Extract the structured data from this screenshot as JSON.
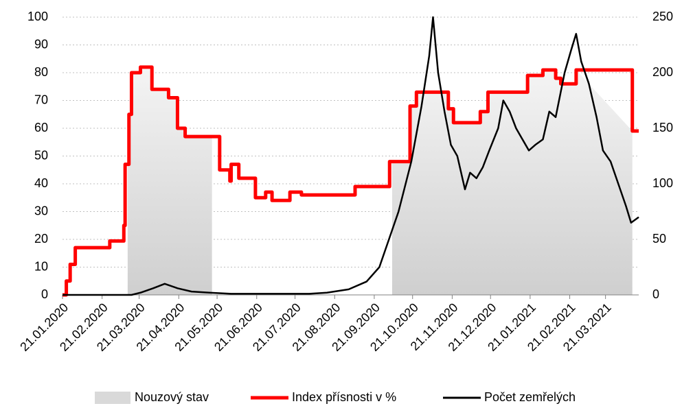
{
  "chart_data": {
    "type": "line",
    "xlim": [
      "21.01.2020",
      "16.04.2021"
    ],
    "xticks": [
      "21.01.2020",
      "21.02.2020",
      "21.03.2020",
      "21.04.2020",
      "21.05.2020",
      "21.06.2020",
      "21.07.2020",
      "21.08.2020",
      "21.09.2020",
      "21.10.2020",
      "21.11.2020",
      "21.12.2020",
      "21.01.2021",
      "21.02.2021",
      "21.03.2021"
    ],
    "ylim": [
      0,
      100
    ],
    "yticks": [
      0,
      10,
      20,
      30,
      40,
      50,
      60,
      70,
      80,
      90,
      100
    ],
    "y2lim": [
      0,
      250
    ],
    "y2ticks": [
      0,
      50,
      100,
      150,
      200,
      250
    ],
    "grid": true,
    "legend": "bottom",
    "shaded": {
      "name": "Nouzový stav",
      "color": "#d9d9d9",
      "periods": [
        [
          "12.03.2020",
          "17.05.2020"
        ],
        [
          "05.10.2020",
          "11.04.2021"
        ]
      ]
    },
    "series": [
      {
        "name": "Index přísnosti v %",
        "color": "#ff0000",
        "step": true,
        "x": [
          "21.01.2020",
          "24.01.2020",
          "27.01.2020",
          "31.01.2020",
          "27.02.2020",
          "09.03.2020",
          "10.03.2020",
          "13.03.2020",
          "15.03.2020",
          "22.03.2020",
          "31.03.2020",
          "13.04.2020",
          "20.04.2020",
          "26.04.2020",
          "23.05.2020",
          "31.05.2020",
          "01.06.2020",
          "07.06.2020",
          "20.06.2020",
          "28.06.2020",
          "03.07.2020",
          "17.07.2020",
          "26.07.2020",
          "06.09.2020",
          "03.10.2020",
          "19.10.2020",
          "24.10.2020",
          "18.11.2020",
          "22.11.2020",
          "13.12.2020",
          "19.12.2020",
          "19.01.2021",
          "31.01.2021",
          "10.02.2021",
          "14.02.2021",
          "26.02.2021",
          "11.04.2021",
          "16.04.2021"
        ],
        "values": [
          0,
          5,
          11,
          17,
          19.4,
          25,
          47,
          65,
          80,
          82,
          74,
          71,
          60,
          57,
          45,
          41,
          47,
          42,
          35,
          37,
          34,
          37,
          36,
          39,
          48,
          68,
          73,
          67,
          62,
          66,
          73,
          79,
          81,
          78,
          76,
          81,
          59,
          59
        ]
      },
      {
        "name": "Počet zemřelých",
        "color": "#000000",
        "axis": "y2",
        "x": [
          "21.01.2020",
          "01.03.2020",
          "15.03.2020",
          "22.03.2020",
          "01.04.2020",
          "10.04.2020",
          "20.04.2020",
          "01.05.2020",
          "15.05.2020",
          "01.06.2020",
          "01.07.2020",
          "01.08.2020",
          "15.08.2020",
          "01.09.2020",
          "15.09.2020",
          "25.09.2020",
          "01.10.2020",
          "10.10.2020",
          "20.10.2020",
          "28.10.2020",
          "03.11.2020",
          "06.11.2020",
          "10.11.2020",
          "15.11.2020",
          "20.11.2020",
          "25.11.2020",
          "01.12.2020",
          "05.12.2020",
          "10.12.2020",
          "15.12.2020",
          "20.12.2020",
          "27.12.2020",
          "31.12.2020",
          "05.01.2021",
          "10.01.2021",
          "15.01.2021",
          "20.01.2021",
          "25.01.2021",
          "31.01.2021",
          "05.02.2021",
          "10.02.2021",
          "17.02.2021",
          "22.02.2021",
          "26.02.2021",
          "02.03.2021",
          "08.03.2021",
          "14.03.2021",
          "19.03.2021",
          "25.03.2021",
          "31.03.2021",
          "06.04.2021",
          "10.04.2021",
          "16.04.2021"
        ],
        "values": [
          0,
          0,
          0,
          2,
          6,
          10,
          6,
          3,
          2,
          1,
          1,
          1,
          2,
          5,
          12,
          25,
          45,
          75,
          120,
          170,
          215,
          250,
          200,
          165,
          135,
          125,
          95,
          110,
          105,
          115,
          130,
          150,
          175,
          165,
          150,
          140,
          130,
          135,
          140,
          165,
          160,
          200,
          220,
          235,
          210,
          190,
          160,
          130,
          120,
          100,
          80,
          65,
          70
        ]
      }
    ]
  }
}
